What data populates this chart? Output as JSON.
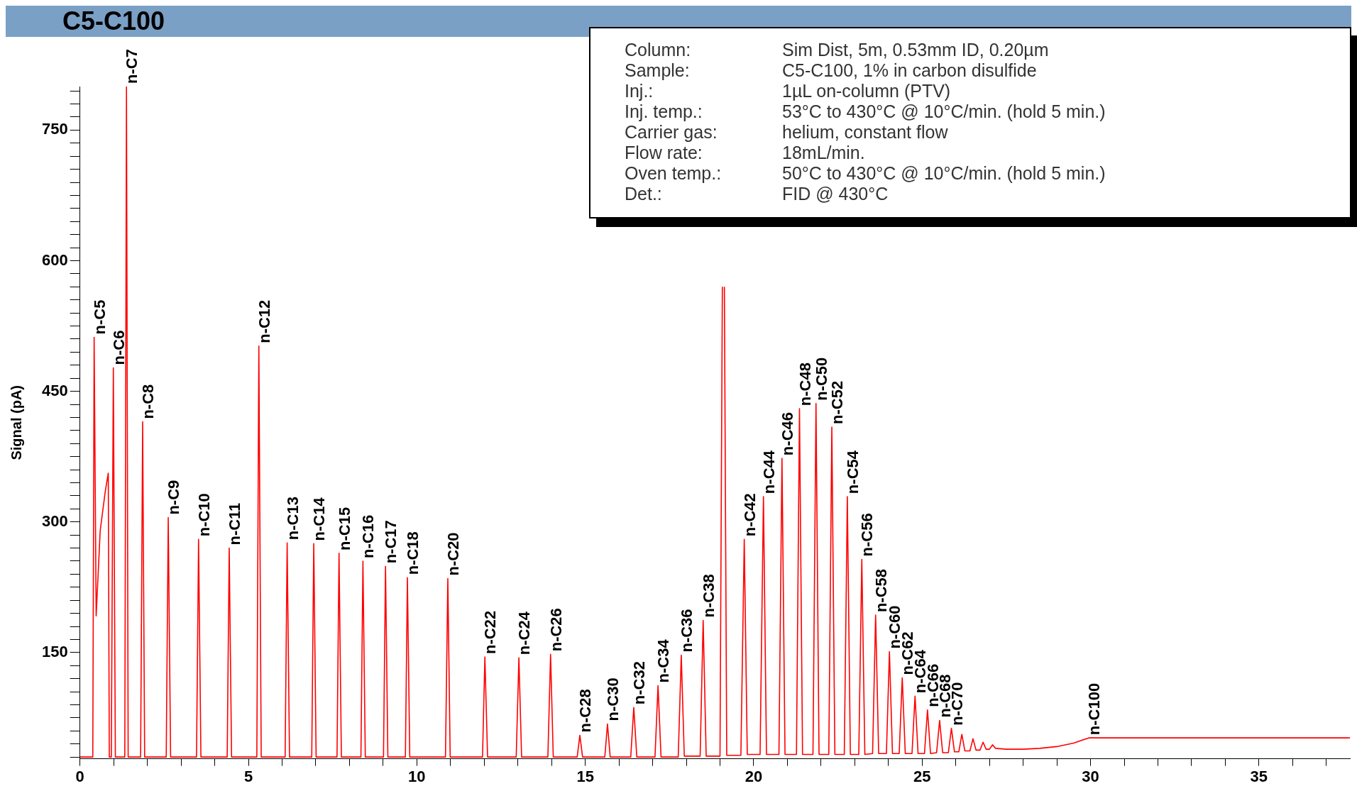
{
  "chart_data": {
    "type": "line",
    "title": "C5-C100",
    "ylabel": "Signal (pA)",
    "color": "#ff0000",
    "marker": "none",
    "line_style": "solid",
    "xlim": [
      0,
      37.7
    ],
    "xticks": [
      0,
      {
        "value": 1,
        "label": null
      },
      {
        "value": 2,
        "label": null
      },
      {
        "value": 3,
        "label": null
      },
      {
        "value": 4,
        "label": null
      },
      5,
      {
        "value": 6,
        "label": null
      },
      {
        "value": 7,
        "label": null
      },
      {
        "value": 8,
        "label": null
      },
      {
        "value": 9,
        "label": null
      },
      10,
      {
        "value": 11,
        "label": null
      },
      {
        "value": 12,
        "label": null
      },
      {
        "value": 13,
        "label": null
      },
      {
        "value": 14,
        "label": null
      },
      15,
      {
        "value": 16,
        "label": null
      },
      {
        "value": 17,
        "label": null
      },
      {
        "value": 18,
        "label": null
      },
      {
        "value": 19,
        "label": null
      },
      20,
      {
        "value": 21,
        "label": null
      },
      {
        "value": 22,
        "label": null
      },
      {
        "value": 23,
        "label": null
      },
      {
        "value": 24,
        "label": null
      },
      25,
      {
        "value": 26,
        "label": null
      },
      {
        "value": 27,
        "label": null
      },
      {
        "value": 28,
        "label": null
      },
      {
        "value": 29,
        "label": null
      },
      30,
      {
        "value": 31,
        "label": null
      },
      {
        "value": 32,
        "label": null
      },
      {
        "value": 33,
        "label": null
      },
      {
        "value": 34,
        "label": null
      },
      35,
      {
        "value": 36,
        "label": null
      },
      {
        "value": 37,
        "label": null
      }
    ],
    "ylim": [
      28,
      800
    ],
    "yticks": [
      {
        "value": 30,
        "label": null
      },
      {
        "value": 45,
        "label": null
      },
      {
        "value": 60,
        "label": null
      },
      {
        "value": 75,
        "label": null
      },
      {
        "value": 90,
        "label": null
      },
      {
        "value": 105,
        "label": null
      },
      {
        "value": 120,
        "label": null
      },
      {
        "value": 135,
        "label": null
      },
      150,
      {
        "value": 165,
        "label": null
      },
      {
        "value": 180,
        "label": null
      },
      {
        "value": 195,
        "label": null
      },
      {
        "value": 210,
        "label": null
      },
      {
        "value": 225,
        "label": null
      },
      {
        "value": 240,
        "label": null
      },
      {
        "value": 255,
        "label": null
      },
      {
        "value": 270,
        "label": null
      },
      {
        "value": 285,
        "label": null
      },
      300,
      {
        "value": 315,
        "label": null
      },
      {
        "value": 330,
        "label": null
      },
      {
        "value": 345,
        "label": null
      },
      {
        "value": 360,
        "label": null
      },
      {
        "value": 375,
        "label": null
      },
      {
        "value": 390,
        "label": null
      },
      {
        "value": 405,
        "label": null
      },
      {
        "value": 420,
        "label": null
      },
      {
        "value": 435,
        "label": null
      },
      450,
      {
        "value": 465,
        "label": null
      },
      {
        "value": 480,
        "label": null
      },
      {
        "value": 495,
        "label": null
      },
      {
        "value": 510,
        "label": null
      },
      {
        "value": 525,
        "label": null
      },
      {
        "value": 540,
        "label": null
      },
      {
        "value": 555,
        "label": null
      },
      {
        "value": 570,
        "label": null
      },
      {
        "value": 585,
        "label": null
      },
      600,
      {
        "value": 615,
        "label": null
      },
      {
        "value": 630,
        "label": null
      },
      {
        "value": 645,
        "label": null
      },
      {
        "value": 660,
        "label": null
      },
      {
        "value": 675,
        "label": null
      },
      {
        "value": 690,
        "label": null
      },
      {
        "value": 705,
        "label": null
      },
      {
        "value": 720,
        "label": null
      },
      {
        "value": 735,
        "label": null
      },
      750,
      {
        "value": 765,
        "label": null
      },
      {
        "value": 780,
        "label": null
      },
      {
        "value": 795,
        "label": null
      }
    ],
    "x": [
      0,
      0.38,
      0.42,
      0.48,
      0.6,
      0.75,
      0.84,
      0.87,
      0.93,
      0.99,
      1.05,
      1.33,
      1.38,
      1.43,
      1.8,
      1.86,
      1.92,
      2.56,
      2.62,
      2.69,
      3.46,
      3.52,
      3.59,
      4.37,
      4.43,
      4.5,
      5.25,
      5.31,
      5.38,
      6.09,
      6.15,
      6.22,
      6.88,
      6.94,
      7.01,
      7.63,
      7.69,
      7.76,
      8.34,
      8.4,
      8.47,
      9.01,
      9.07,
      9.14,
      9.66,
      9.72,
      9.79,
      10.85,
      10.92,
      10.99,
      11.95,
      12.02,
      12.1,
      12.95,
      13.03,
      13.11,
      13.89,
      13.97,
      14.05,
      14.76,
      14.84,
      14.92,
      15.58,
      15.66,
      15.74,
      16.35,
      16.44,
      16.53,
      17.07,
      17.16,
      17.25,
      17.76,
      17.85,
      17.94,
      18.41,
      18.5,
      18.59,
      19.0,
      19.07,
      19.1,
      19.13,
      19.2,
      19.62,
      19.72,
      19.81,
      20.19,
      20.29,
      20.38,
      20.75,
      20.84,
      20.93,
      21.27,
      21.36,
      21.45,
      21.76,
      21.85,
      21.94,
      22.23,
      22.32,
      22.41,
      22.69,
      22.78,
      22.87,
      23.12,
      23.21,
      23.3,
      23.53,
      23.62,
      23.71,
      23.94,
      24.03,
      24.12,
      24.32,
      24.41,
      24.5,
      24.7,
      24.79,
      24.88,
      25.07,
      25.16,
      25.25,
      25.43,
      25.52,
      25.61,
      25.78,
      25.87,
      25.96,
      26.09,
      26.18,
      26.27,
      26.42,
      26.51,
      26.6,
      26.72,
      26.81,
      26.9,
      27.0,
      27.09,
      27.18,
      27.5,
      28.0,
      28.5,
      29.0,
      29.5,
      29.95,
      37.7
    ],
    "values": [
      30,
      30,
      512,
      192,
      290,
      335,
      356,
      30,
      30,
      477,
      30,
      30,
      800,
      30,
      30,
      415,
      30,
      30,
      305,
      30,
      30,
      280,
      30,
      30,
      270,
      30,
      30,
      502,
      30,
      30,
      276,
      30,
      30,
      275,
      30,
      30,
      264,
      30,
      30,
      255,
      30,
      30,
      249,
      30,
      30,
      236,
      30,
      30,
      235,
      30,
      30,
      145,
      30,
      30,
      144,
      30,
      30,
      148,
      30,
      30,
      55,
      30,
      30,
      68,
      30,
      30,
      87,
      30,
      30,
      112,
      30,
      30,
      147,
      31,
      31,
      187,
      31,
      31,
      570,
      null,
      570,
      32,
      32,
      280,
      33,
      33,
      329,
      33,
      33,
      373,
      33,
      33,
      430,
      33,
      33,
      436,
      33,
      33,
      409,
      33,
      33,
      329,
      33,
      33,
      257,
      33,
      34,
      193,
      34,
      34,
      151,
      34,
      34,
      121,
      34,
      34,
      100,
      34,
      34,
      84,
      34,
      35,
      72,
      35,
      35,
      63,
      36,
      36,
      56,
      37,
      37,
      51,
      38,
      38,
      47,
      39,
      39,
      44,
      40,
      39,
      39,
      40,
      42,
      46,
      52,
      52
    ],
    "annotations": [
      "Column: Sim Dist, 5m, 0.53mm ID, 0.20µm",
      "Sample: C5-C100, 1% in carbon disulfide",
      "Inj.: 1µL on-column (PTV)",
      "Inj. temp.: 53°C to 430°C @ 10°C/min. (hold 5 min.)",
      "Carrier gas: helium, constant flow",
      "Flow rate: 18mL/min.",
      "Oven temp.: 50°C to 430°C @ 10°C/min. (hold 5 min.)",
      "Det.: FID @ 430°C",
      {
        "text": "n-C5",
        "x": 0.42,
        "y": 512
      },
      {
        "text": "n-C6",
        "x": 0.99,
        "y": 477
      },
      {
        "text": "n-C7",
        "x": 1.38,
        "y": 800
      },
      {
        "text": "n-C8",
        "x": 1.86,
        "y": 415
      },
      {
        "text": "n-C9",
        "x": 2.62,
        "y": 305
      },
      {
        "text": "n-C10",
        "x": 3.52,
        "y": 280
      },
      {
        "text": "n-C11",
        "x": 4.43,
        "y": 270
      },
      {
        "text": "n-C12",
        "x": 5.31,
        "y": 502
      },
      {
        "text": "n-C13",
        "x": 6.15,
        "y": 276
      },
      {
        "text": "n-C14",
        "x": 6.94,
        "y": 275
      },
      {
        "text": "n-C15",
        "x": 7.69,
        "y": 264
      },
      {
        "text": "n-C16",
        "x": 8.4,
        "y": 255
      },
      {
        "text": "n-C17",
        "x": 9.07,
        "y": 249
      },
      {
        "text": "n-C18",
        "x": 9.72,
        "y": 236
      },
      {
        "text": "n-C20",
        "x": 10.92,
        "y": 235
      },
      {
        "text": "n-C22",
        "x": 12.02,
        "y": 145
      },
      {
        "text": "n-C24",
        "x": 13.03,
        "y": 144
      },
      {
        "text": "n-C26",
        "x": 13.97,
        "y": 148
      },
      {
        "text": "n-C28",
        "x": 14.84,
        "y": 55
      },
      {
        "text": "n-C30",
        "x": 15.66,
        "y": 68
      },
      {
        "text": "n-C32",
        "x": 16.44,
        "y": 87
      },
      {
        "text": "n-C34",
        "x": 17.16,
        "y": 112
      },
      {
        "text": "n-C36",
        "x": 17.85,
        "y": 147
      },
      {
        "text": "n-C38",
        "x": 18.5,
        "y": 187
      },
      {
        "text": "n-C42",
        "x": 19.72,
        "y": 280
      },
      {
        "text": "n-C44",
        "x": 20.29,
        "y": 329
      },
      {
        "text": "n-C46",
        "x": 20.84,
        "y": 373
      },
      {
        "text": "n-C48",
        "x": 21.36,
        "y": 430
      },
      {
        "text": "n-C50",
        "x": 21.85,
        "y": 436
      },
      {
        "text": "n-C52",
        "x": 22.32,
        "y": 409
      },
      {
        "text": "n-C54",
        "x": 22.78,
        "y": 329
      },
      {
        "text": "n-C56",
        "x": 23.21,
        "y": 257
      },
      {
        "text": "n-C58",
        "x": 23.62,
        "y": 193
      },
      {
        "text": "n-C60",
        "x": 24.03,
        "y": 151
      },
      {
        "text": "n-C62",
        "x": 24.41,
        "y": 121
      },
      {
        "text": "n-C64",
        "x": 24.79,
        "y": 100
      },
      {
        "text": "n-C66",
        "x": 25.16,
        "y": 84
      },
      {
        "text": "n-C68",
        "x": 25.52,
        "y": 72
      },
      {
        "text": "n-C70",
        "x": 25.87,
        "y": 63
      },
      {
        "text": "n-C100",
        "x": 29.95,
        "y": 52
      }
    ]
  }
}
